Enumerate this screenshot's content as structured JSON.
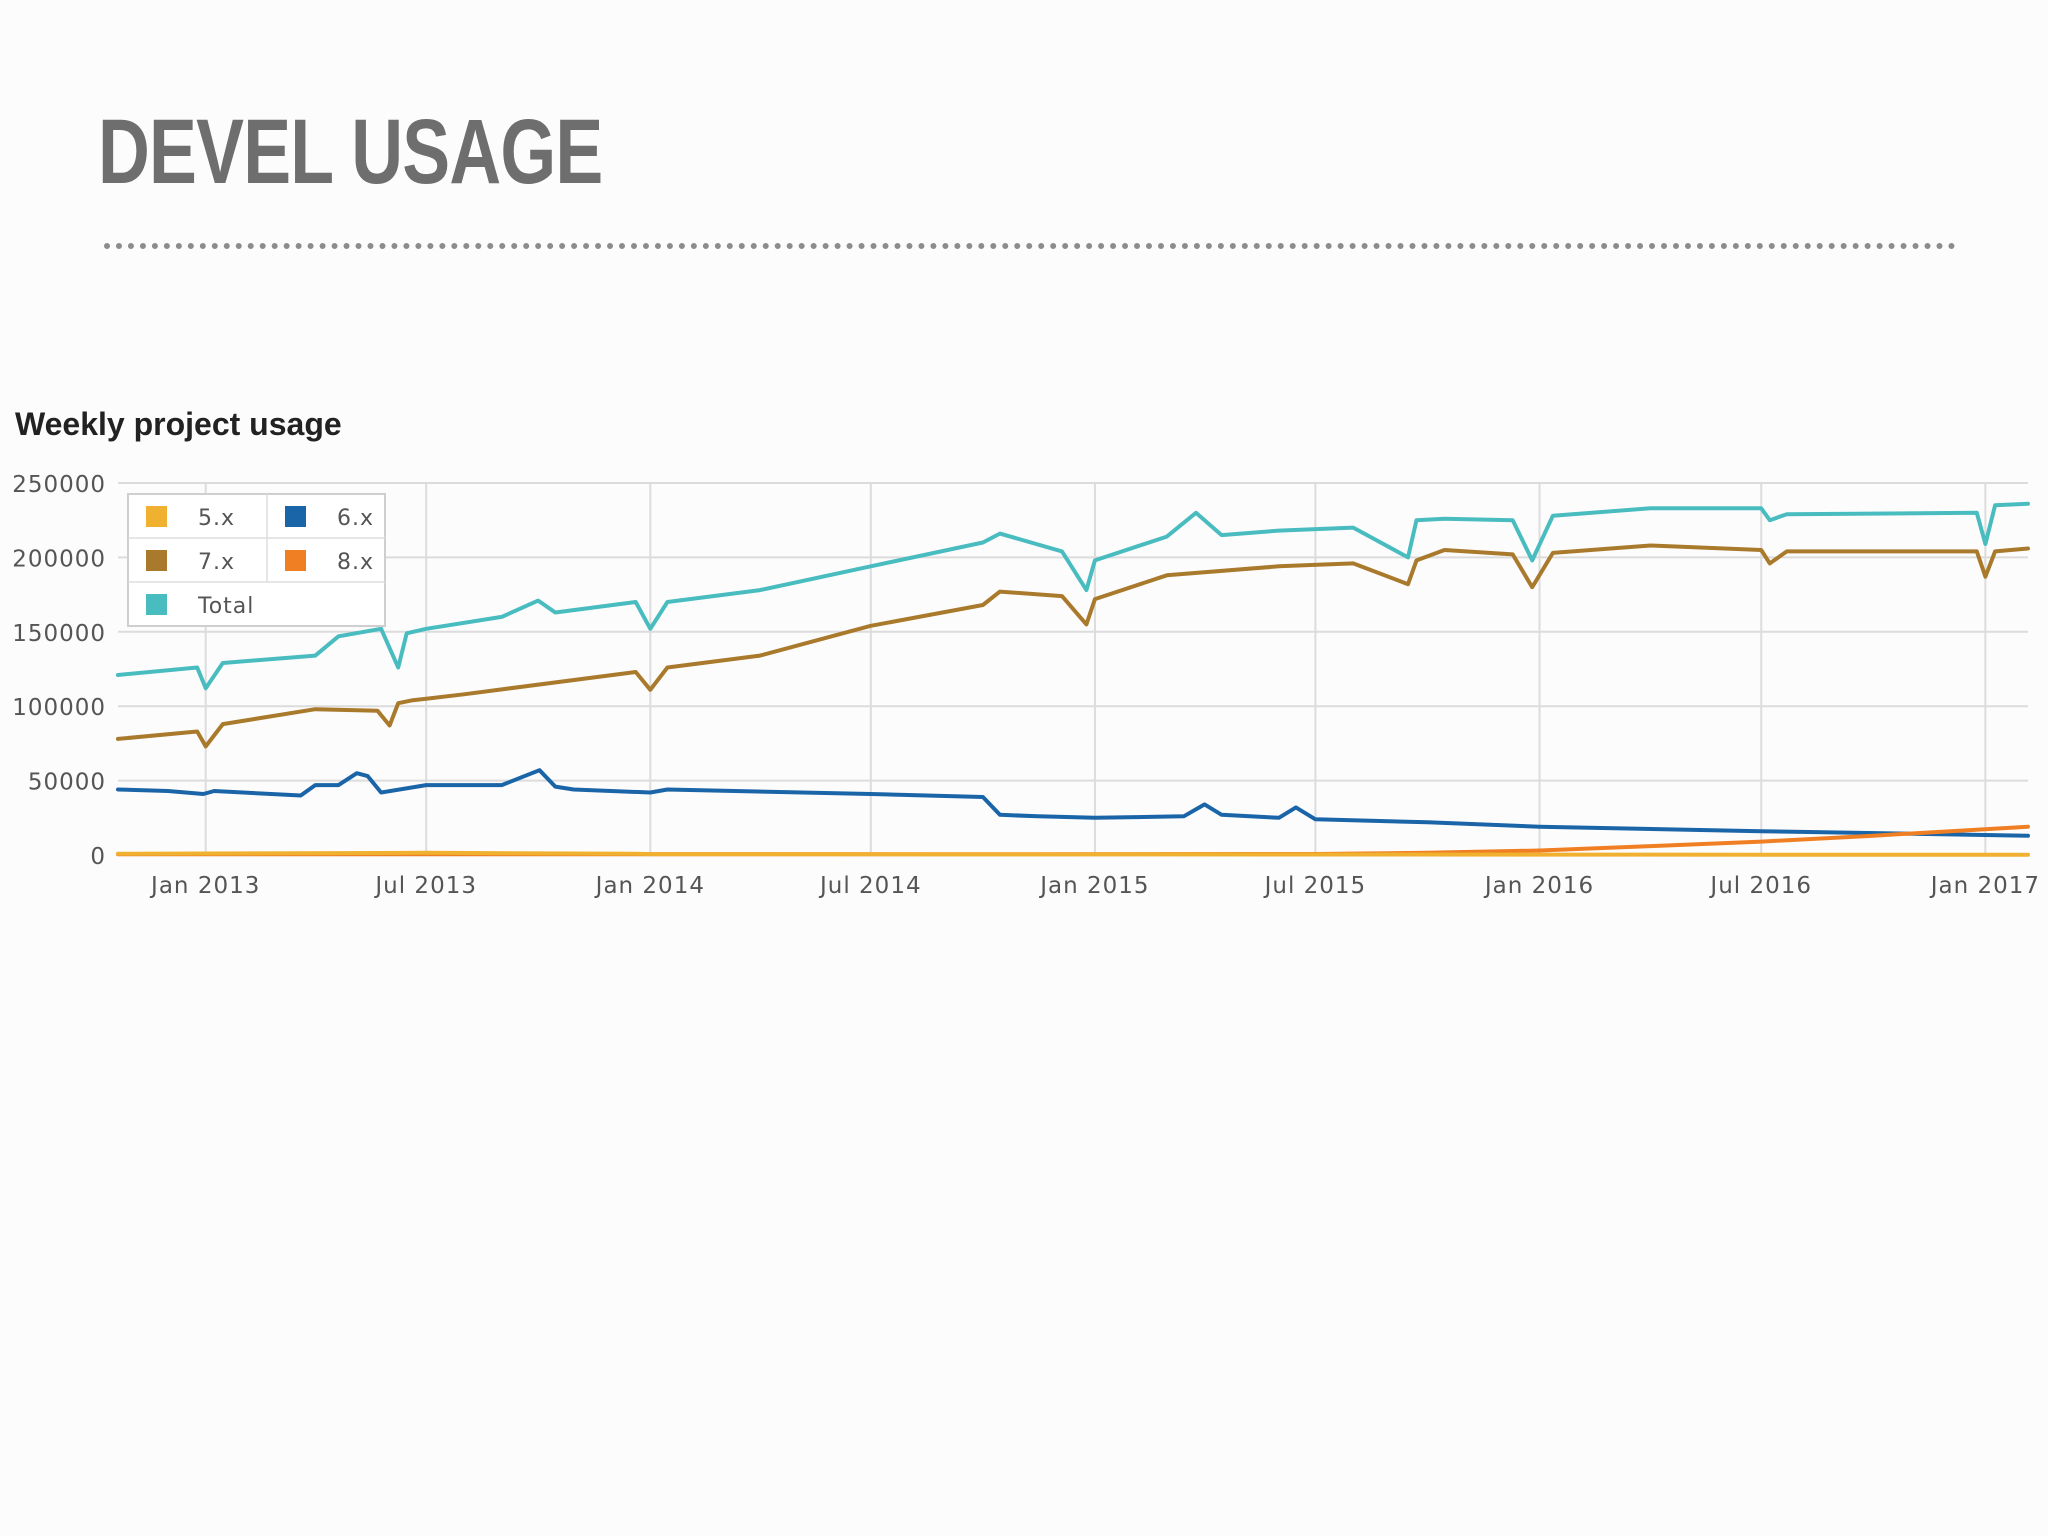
{
  "slide": {
    "title": "DEVEL USAGE"
  },
  "chart_data": {
    "type": "line",
    "title": "Weekly project usage",
    "xlabel": "",
    "ylabel": "",
    "ylim": [
      0,
      250000
    ],
    "y_ticks": [
      0,
      50000,
      100000,
      150000,
      200000,
      250000
    ],
    "x_ticks": [
      "2013-01-01",
      "2013-07-01",
      "2014-01-01",
      "2014-07-01",
      "2015-01-01",
      "2015-07-01",
      "2016-01-01",
      "2016-07-01",
      "2017-01-01"
    ],
    "x_tick_labels": [
      "Jan 2013",
      "Jul 2013",
      "Jan 2014",
      "Jul 2014",
      "Jan 2015",
      "Jul 2015",
      "Jan 2016",
      "Jul 2016",
      "Jan 2017"
    ],
    "x_range": [
      "2012-10-21",
      "2017-02-05"
    ],
    "grid": true,
    "legend_position": "top-left",
    "series": [
      {
        "name": "5.x",
        "color": "#f0b030",
        "x": [
          "2012-10-21",
          "2013-07-01",
          "2013-12-20",
          "2014-01-01",
          "2015-01-01",
          "2016-01-01",
          "2016-07-01",
          "2017-02-05"
        ],
        "values": [
          800,
          1500,
          800,
          600,
          400,
          300,
          200,
          200
        ]
      },
      {
        "name": "6.x",
        "color": "#1a64a8",
        "x": [
          "2012-10-21",
          "2012-12-01",
          "2012-12-30",
          "2013-01-08",
          "2013-03-20",
          "2013-04-01",
          "2013-04-20",
          "2013-05-05",
          "2013-05-14",
          "2013-05-25",
          "2013-07-01",
          "2013-09-01",
          "2013-10-02",
          "2013-10-15",
          "2013-10-30",
          "2014-01-01",
          "2014-01-15",
          "2014-07-01",
          "2014-10-01",
          "2014-10-15",
          "2014-11-15",
          "2015-01-01",
          "2015-03-15",
          "2015-04-01",
          "2015-04-15",
          "2015-06-01",
          "2015-06-15",
          "2015-07-01",
          "2015-10-01",
          "2016-01-01",
          "2016-07-01",
          "2017-02-05"
        ],
        "values": [
          44000,
          43000,
          41000,
          43000,
          40000,
          47000,
          47000,
          55000,
          53000,
          42000,
          47000,
          47000,
          57000,
          46000,
          44000,
          42000,
          44000,
          41000,
          39000,
          27000,
          26000,
          25000,
          26000,
          34000,
          27000,
          25000,
          32000,
          24000,
          22000,
          19000,
          16000,
          13000
        ]
      },
      {
        "name": "7.x",
        "color": "#a97a2c",
        "x": [
          "2012-10-21",
          "2012-12-25",
          "2013-01-01",
          "2013-01-15",
          "2013-04-01",
          "2013-05-22",
          "2013-06-01",
          "2013-06-08",
          "2013-06-20",
          "2013-07-01",
          "2013-08-01",
          "2013-12-20",
          "2014-01-01",
          "2014-01-15",
          "2014-04-01",
          "2014-07-01",
          "2014-10-01",
          "2014-10-15",
          "2014-12-05",
          "2014-12-25",
          "2015-01-01",
          "2015-03-01",
          "2015-06-01",
          "2015-08-01",
          "2015-09-15",
          "2015-09-22",
          "2015-10-15",
          "2015-12-10",
          "2015-12-26",
          "2016-01-12",
          "2016-04-01",
          "2016-07-01",
          "2016-07-08",
          "2016-07-22",
          "2016-12-25",
          "2017-01-01",
          "2017-01-09",
          "2017-02-05"
        ],
        "values": [
          78000,
          83000,
          73000,
          88000,
          98000,
          97000,
          87000,
          102000,
          104000,
          105000,
          108000,
          123000,
          111000,
          126000,
          134000,
          154000,
          168000,
          177000,
          174000,
          155000,
          172000,
          188000,
          194000,
          196000,
          182000,
          198000,
          205000,
          202000,
          180000,
          203000,
          208000,
          205000,
          196000,
          204000,
          204000,
          187000,
          204000,
          206000
        ]
      },
      {
        "name": "8.x",
        "color": "#f07f23",
        "x": [
          "2012-10-21",
          "2014-07-01",
          "2015-07-01",
          "2015-10-01",
          "2016-01-01",
          "2016-04-01",
          "2016-07-01",
          "2016-10-01",
          "2017-02-05"
        ],
        "values": [
          500,
          500,
          700,
          1500,
          3000,
          6000,
          9000,
          13000,
          19000
        ]
      },
      {
        "name": "Total",
        "color": "#49bcc0",
        "x": [
          "2012-10-21",
          "2012-12-25",
          "2013-01-01",
          "2013-01-15",
          "2013-04-01",
          "2013-04-20",
          "2013-05-25",
          "2013-06-08",
          "2013-06-15",
          "2013-07-01",
          "2013-09-01",
          "2013-10-01",
          "2013-10-15",
          "2013-12-20",
          "2014-01-01",
          "2014-01-15",
          "2014-04-01",
          "2014-07-01",
          "2014-10-01",
          "2014-10-15",
          "2014-12-05",
          "2014-12-25",
          "2015-01-01",
          "2015-03-01",
          "2015-03-25",
          "2015-04-15",
          "2015-06-01",
          "2015-08-01",
          "2015-09-15",
          "2015-09-22",
          "2015-10-15",
          "2015-12-10",
          "2015-12-26",
          "2016-01-12",
          "2016-04-01",
          "2016-07-01",
          "2016-07-08",
          "2016-07-22",
          "2016-12-25",
          "2017-01-01",
          "2017-01-09",
          "2017-02-05"
        ],
        "values": [
          121000,
          126000,
          112000,
          129000,
          134000,
          147000,
          152000,
          126000,
          149000,
          152000,
          160000,
          171000,
          163000,
          170000,
          152000,
          170000,
          178000,
          194000,
          210000,
          216000,
          204000,
          178000,
          198000,
          214000,
          230000,
          215000,
          218000,
          220000,
          200000,
          225000,
          226000,
          225000,
          198000,
          228000,
          233000,
          233000,
          225000,
          229000,
          230000,
          209000,
          235000,
          236000
        ]
      }
    ]
  }
}
